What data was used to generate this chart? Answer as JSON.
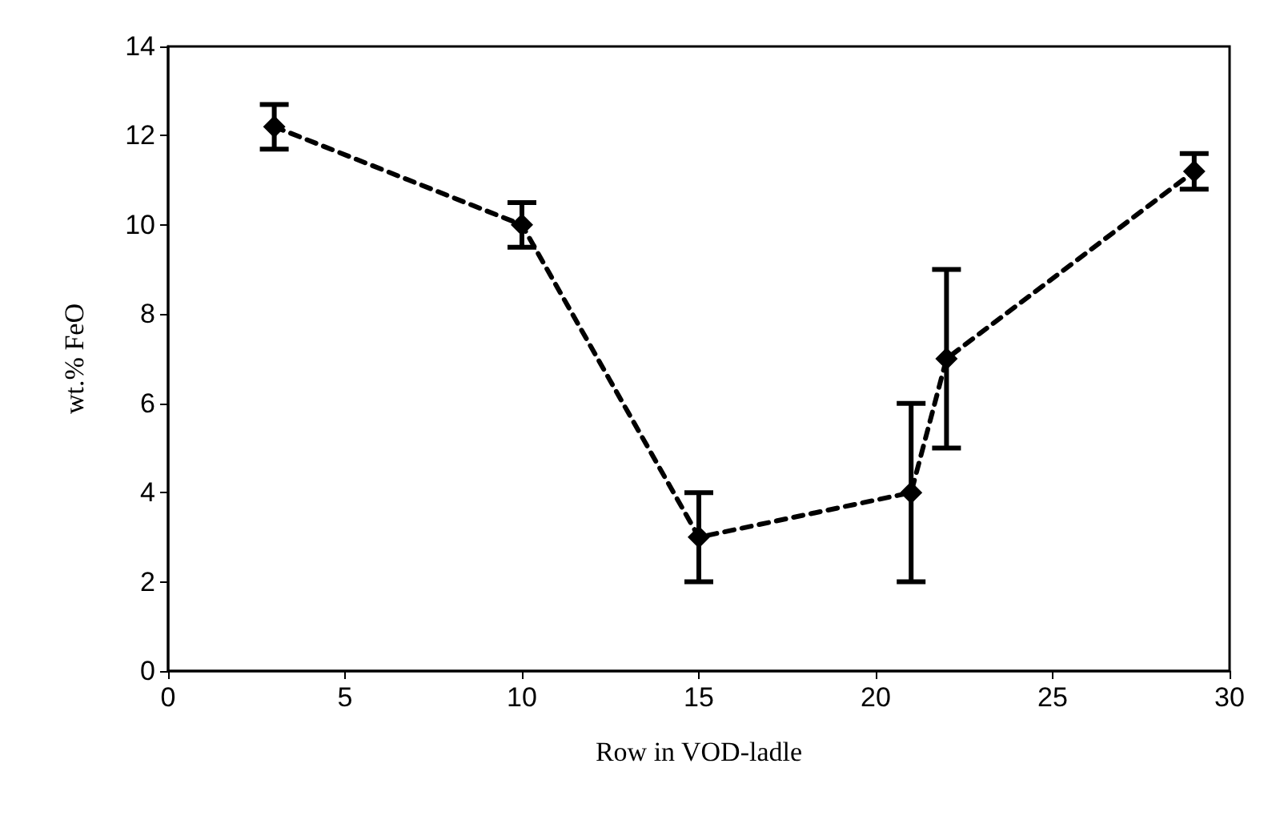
{
  "chart_data": {
    "type": "line",
    "xlabel": "Row in VOD-ladle",
    "ylabel": "wt.% FeO",
    "x": [
      3,
      10,
      15,
      21,
      22,
      29
    ],
    "series": [
      {
        "color": "#000000",
        "values": [
          12.2,
          10,
          3,
          4,
          7,
          11.2
        ],
        "errors": [
          0.5,
          0.5,
          1,
          2,
          2,
          0.4
        ]
      }
    ],
    "xlim": [
      0,
      30
    ],
    "xticks": [
      0,
      5,
      10,
      15,
      20,
      25,
      30
    ],
    "ylim": [
      0,
      14
    ],
    "yticks": [
      0,
      2,
      4,
      6,
      8,
      10,
      12,
      14
    ],
    "grid": false,
    "marker": "diamond",
    "line_style": "dashed"
  }
}
